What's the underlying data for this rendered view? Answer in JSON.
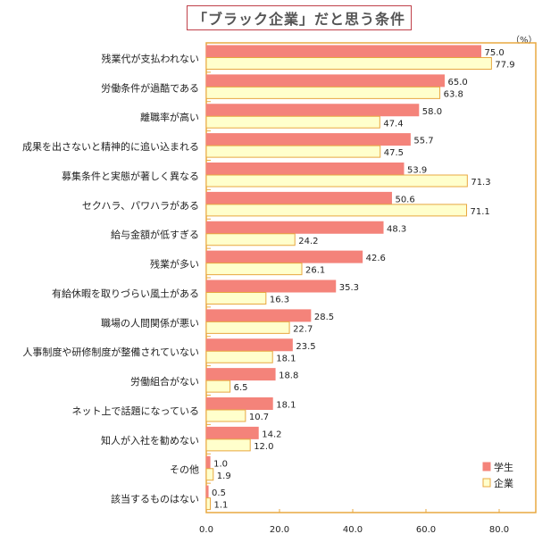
{
  "chart_data": {
    "type": "bar",
    "orientation": "horizontal",
    "title": "「ブラック企業」だと思う条件",
    "unit_label": "（%）",
    "categories": [
      "残業代が支払われない",
      "労働条件が過酷である",
      "離職率が高い",
      "成果を出さないと精神的に追い込まれる",
      "募集条件と実態が著しく異なる",
      "セクハラ、パワハラがある",
      "給与金額が低すぎる",
      "残業が多い",
      "有給休暇を取りづらい風土がある",
      "職場の人間関係が悪い",
      "人事制度や研修制度が整備されていない",
      "労働組合がない",
      "ネット上で話題になっている",
      "知人が入社を勧めない",
      "その他",
      "該当するものはない"
    ],
    "series": [
      {
        "name": "学生",
        "color": "#f4837a",
        "values": [
          75.0,
          65.0,
          58.0,
          55.7,
          53.9,
          50.6,
          48.3,
          42.6,
          35.3,
          28.5,
          23.5,
          18.8,
          18.1,
          14.2,
          1.0,
          0.5
        ]
      },
      {
        "name": "企業",
        "color": "#ffffcc",
        "values": [
          77.9,
          63.8,
          47.4,
          47.5,
          71.3,
          71.1,
          24.2,
          26.1,
          16.3,
          22.7,
          18.1,
          6.5,
          10.7,
          12.0,
          1.9,
          1.1
        ]
      }
    ],
    "xlim": [
      0,
      90
    ],
    "xticks": [
      "0.0",
      "20.0",
      "40.0",
      "60.0",
      "80.0"
    ],
    "legend_position": "bottom-right",
    "grid": false
  }
}
